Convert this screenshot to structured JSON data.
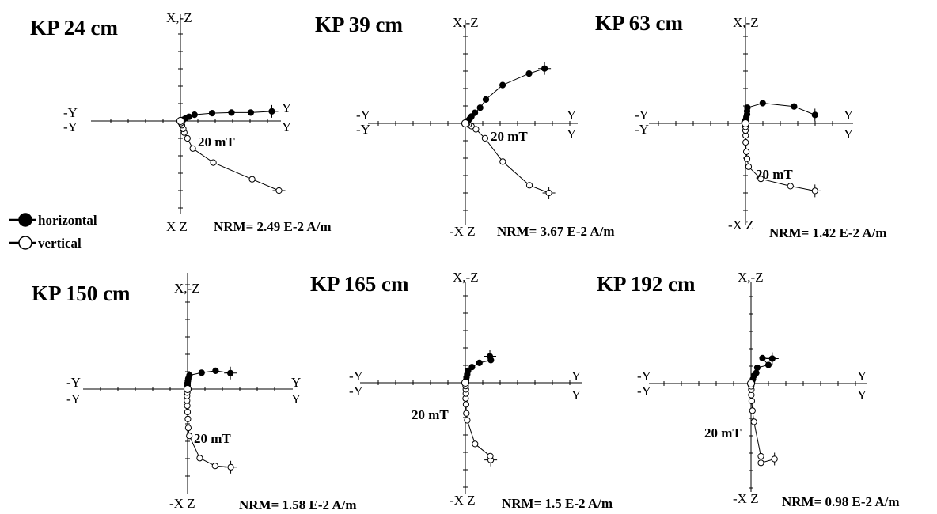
{
  "legend": {
    "horizontal_label": "horizontal",
    "vertical_label": "vertical",
    "horizontal_fill": "#000000",
    "vertical_fill": "#ffffff"
  },
  "chart_data": [
    {
      "type": "scatter",
      "title": "KP 24 cm",
      "axis_labels": {
        "top": "X,-Z",
        "bottom": "X Z",
        "left_top": "-Y",
        "left_bottom": "-Y",
        "right_top": "Y",
        "right_bottom": "Y"
      },
      "scale_label": "20 mT",
      "nrm_label": "NRM= 2.49 E-2 A/m",
      "series": [
        {
          "points": [
            [
              52.5,
              5.5
            ],
            [
              40.4,
              4.8
            ],
            [
              29.3,
              4.8
            ],
            [
              18.2,
              4.5
            ],
            [
              8.1,
              3.6
            ],
            [
              4.9,
              2.4
            ],
            [
              3.1,
              1.7
            ],
            [
              1.6,
              0.7
            ],
            [
              0.7,
              0.4
            ],
            [
              0,
              0
            ]
          ]
        },
        {
          "points": [
            [
              56.6,
              -40.0
            ],
            [
              41.2,
              -33.5
            ],
            [
              18.9,
              -23.9
            ],
            [
              7.1,
              -15.8
            ],
            [
              4.0,
              -10.0
            ],
            [
              2.2,
              -6.7
            ],
            [
              1.6,
              -4.5
            ],
            [
              0.9,
              -2.4
            ],
            [
              0.3,
              -1.2
            ],
            [
              0,
              0
            ]
          ]
        }
      ]
    },
    {
      "type": "scatter",
      "title": "KP 39 cm",
      "axis_labels": {
        "top": "X,-Z",
        "bottom": "-X Z",
        "left_top": "-Y",
        "left_bottom": "-Y",
        "right_top": "Y",
        "right_bottom": "Y"
      },
      "scale_label": "20 mT",
      "nrm_label": "NRM= 3.67 E-2 A/m",
      "series": [
        {
          "points": [
            [
              45.5,
              31.5
            ],
            [
              36.6,
              28.6
            ],
            [
              21.4,
              22.0
            ],
            [
              11.8,
              13.7
            ],
            [
              8.5,
              9.0
            ],
            [
              5.5,
              6.1
            ],
            [
              3.5,
              3.9
            ],
            [
              2.6,
              2.7
            ],
            [
              1.7,
              1.6
            ],
            [
              0,
              0
            ]
          ]
        },
        {
          "points": [
            [
              48.0,
              -40.0
            ],
            [
              36.8,
              -35.6
            ],
            [
              21.5,
              -22.0
            ],
            [
              11.3,
              -8.6
            ],
            [
              6.1,
              -3.4
            ],
            [
              3.5,
              -1.6
            ],
            [
              1.9,
              -0.7
            ],
            [
              1.0,
              -0.2
            ],
            [
              0,
              0
            ]
          ]
        }
      ]
    },
    {
      "type": "scatter",
      "title": "KP 63 cm",
      "axis_labels": {
        "top": "X,-Z",
        "bottom": "-X Z",
        "left_top": "-Y",
        "left_bottom": "-Y",
        "right_top": "Y",
        "right_bottom": "Y"
      },
      "scale_label": "20 mT",
      "nrm_label": "NRM= 1.42 E-2 A/m",
      "series": [
        {
          "points": [
            [
              39.9,
              4.8
            ],
            [
              27.9,
              9.7
            ],
            [
              9.9,
              11.6
            ],
            [
              1.1,
              9.0
            ],
            [
              0.9,
              7.0
            ],
            [
              0.9,
              5.2
            ],
            [
              0.5,
              3.6
            ],
            [
              0.0,
              1.8
            ],
            [
              -0.6,
              0.6
            ],
            [
              0,
              0
            ]
          ]
        },
        {
          "points": [
            [
              39.9,
              -38.8
            ],
            [
              25.8,
              -36.1
            ],
            [
              8.8,
              -31.9
            ],
            [
              1.8,
              -24.9
            ],
            [
              0.9,
              -20.3
            ],
            [
              0.5,
              -16.3
            ],
            [
              0.1,
              -10.9
            ],
            [
              0.1,
              -7.0
            ],
            [
              0.0,
              -4.1
            ],
            [
              0.0,
              -2.0
            ],
            [
              0,
              0
            ]
          ]
        }
      ]
    },
    {
      "type": "scatter",
      "title": "KP 150 cm",
      "axis_labels": {
        "top": "X,-Z",
        "bottom": "-X Z",
        "left_top": "-Y",
        "left_bottom": "-Y",
        "right_top": "Y",
        "right_bottom": "Y"
      },
      "scale_label": "20 mT",
      "nrm_label": "NRM= 1.58 E-2 A/m",
      "series": [
        {
          "points": [
            [
              24.6,
              9.2
            ],
            [
              16.1,
              10.5
            ],
            [
              8.1,
              9.4
            ],
            [
              1.1,
              7.9
            ],
            [
              0.4,
              6.0
            ],
            [
              0.2,
              4.7
            ],
            [
              0.0,
              3.4
            ],
            [
              0.0,
              2.2
            ],
            [
              0.0,
              1.0
            ],
            [
              0,
              0
            ]
          ]
        },
        {
          "points": [
            [
              24.8,
              -44.9
            ],
            [
              15.8,
              -44.2
            ],
            [
              7.0,
              -39.7
            ],
            [
              1.0,
              -26.9
            ],
            [
              0.4,
              -22.3
            ],
            [
              0.2,
              -17.2
            ],
            [
              0.0,
              -13.2
            ],
            [
              -0.2,
              -9.6
            ],
            [
              -0.3,
              -6.6
            ],
            [
              -0.3,
              -4.0
            ],
            [
              -0.2,
              -2.0
            ],
            [
              0,
              0
            ]
          ]
        }
      ]
    },
    {
      "type": "scatter",
      "title": "KP 165 cm",
      "axis_labels": {
        "top": "X,-Z",
        "bottom": "-X Z",
        "left_top": "-Y",
        "left_bottom": "-Y",
        "right_top": "Y",
        "right_bottom": "Y"
      },
      "scale_label": "20 mT",
      "nrm_label": "NRM= 1.5 E-2 A/m",
      "series": [
        {
          "points": [
            [
              14.1,
              15.2
            ],
            [
              14.7,
              13.0
            ],
            [
              8.1,
              11.4
            ],
            [
              3.8,
              9.0
            ],
            [
              1.6,
              6.9
            ],
            [
              1.1,
              4.8
            ],
            [
              0.7,
              3.2
            ],
            [
              0.5,
              1.6
            ],
            [
              0.3,
              0.6
            ],
            [
              0,
              0
            ]
          ]
        },
        {
          "points": [
            [
              14.6,
              -44.4
            ],
            [
              14.3,
              -42.2
            ],
            [
              5.6,
              -35.2
            ],
            [
              1.1,
              -21.6
            ],
            [
              0.6,
              -17.6
            ],
            [
              0.4,
              -12.4
            ],
            [
              0.2,
              -9.0
            ],
            [
              0.3,
              -6.2
            ],
            [
              0.3,
              -3.8
            ],
            [
              0.2,
              -1.9
            ],
            [
              0,
              0
            ]
          ]
        }
      ]
    },
    {
      "type": "scatter",
      "title": "KP 192 cm",
      "axis_labels": {
        "top": "X,-Z",
        "bottom": "-X Z",
        "left_top": "-Y",
        "left_bottom": "-Y",
        "right_top": "Y",
        "right_bottom": "Y"
      },
      "scale_label": "20 mT",
      "nrm_label": "NRM= 0.98 E-2 A/m",
      "series": [
        {
          "points": [
            [
              12.2,
              14.3
            ],
            [
              6.6,
              14.6
            ],
            [
              10.0,
              10.7
            ],
            [
              3.6,
              9.1
            ],
            [
              3.0,
              6.1
            ],
            [
              1.6,
              4.4
            ],
            [
              1.1,
              2.5
            ],
            [
              0.6,
              1.2
            ],
            [
              0,
              0
            ]
          ]
        },
        {
          "points": [
            [
              13.5,
              -43.4
            ],
            [
              5.7,
              -45.6
            ],
            [
              5.7,
              -41.8
            ],
            [
              1.7,
              -22.0
            ],
            [
              0.8,
              -15.6
            ],
            [
              0.4,
              -10.0
            ],
            [
              0.2,
              -6.6
            ],
            [
              0.2,
              -3.6
            ],
            [
              0.1,
              -1.6
            ],
            [
              0,
              0
            ]
          ]
        }
      ]
    }
  ]
}
